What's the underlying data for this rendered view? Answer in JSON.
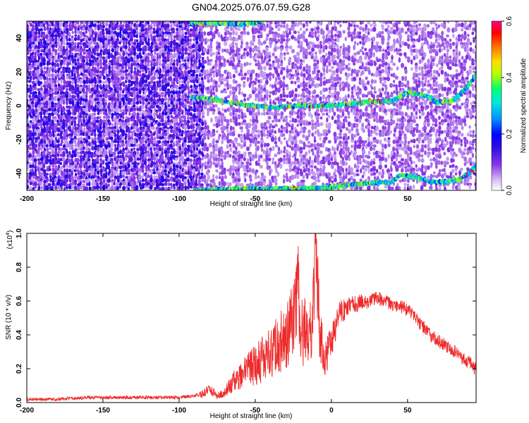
{
  "figure_title": "GN04.2025.076.07.59.G28",
  "chart_data": [
    {
      "type": "heatmap",
      "title": "",
      "xlabel": "Height of straight line (km)",
      "ylabel": "Frequency (Hz)",
      "xlim": [
        -200,
        95
      ],
      "ylim": [
        -50,
        50
      ],
      "x_ticks": [
        -200,
        -150,
        -100,
        -50,
        0,
        50
      ],
      "y_ticks": [
        -40,
        -20,
        0,
        20,
        40
      ],
      "grid": false,
      "colorscale": [
        "#ffffff",
        "#c9a8f0",
        "#8a38e6",
        "#3f10dc",
        "#0000ff",
        "#0090ff",
        "#00e0e0",
        "#00ff70",
        "#b0ff00",
        "#ffe000",
        "#ff7000",
        "#ff0000",
        "#ff0080"
      ],
      "colorbar": {
        "label": "Normalized spectral amplitude",
        "range": [
          0.0,
          0.6
        ],
        "ticks": [
          "0.0",
          "0.2",
          "0.4",
          "0.6"
        ]
      },
      "signal_tracks": [
        {
          "x": [
            -92,
            -80,
            -60,
            -40,
            -20,
            0,
            20,
            40,
            50,
            62,
            70,
            80,
            88,
            95
          ],
          "y": [
            5,
            4,
            1,
            -1,
            0,
            0,
            2,
            3,
            8,
            6,
            2,
            3,
            10,
            18
          ]
        },
        {
          "x": [
            -90,
            -60,
            -40,
            -20,
            0,
            20,
            40,
            45,
            55,
            65,
            75,
            85,
            90,
            95
          ],
          "y": [
            -50,
            -49,
            -49,
            -49,
            -48,
            -46,
            -45,
            -41,
            -42,
            -45,
            -45,
            -43,
            -40,
            -35
          ]
        },
        {
          "x": [
            -92,
            -75,
            -60,
            -50,
            -45
          ],
          "y": [
            49,
            49,
            48,
            49,
            50
          ]
        }
      ]
    },
    {
      "type": "line",
      "title": "",
      "xlabel": "Height of straight line (km)",
      "ylabel": "SNR (10 * v/v)",
      "y_multiplier": "(x10",
      "y_multiplier_exp": "4",
      "xlim": [
        -200,
        95
      ],
      "ylim": [
        0.0,
        1.0
      ],
      "x_ticks": [
        -200,
        -150,
        -100,
        -50,
        0,
        50
      ],
      "y_ticks": [
        "0.0",
        "0.2",
        "0.4",
        "0.6",
        "0.8",
        "1.0"
      ],
      "grid": false,
      "series": [
        {
          "color": "#ee2a2a",
          "x": [
            -200,
            -180,
            -160,
            -140,
            -120,
            -100,
            -90,
            -85,
            -80,
            -75,
            -70,
            -65,
            -60,
            -55,
            -50,
            -45,
            -40,
            -35,
            -30,
            -27,
            -25,
            -22,
            -20,
            -17,
            -15,
            -12,
            -10,
            -8,
            -5,
            0,
            5,
            10,
            15,
            20,
            25,
            30,
            35,
            40,
            45,
            50,
            55,
            60,
            65,
            70,
            75,
            80,
            85,
            90,
            95
          ],
          "y": [
            0.02,
            0.02,
            0.03,
            0.03,
            0.03,
            0.03,
            0.04,
            0.05,
            0.08,
            0.04,
            0.06,
            0.12,
            0.15,
            0.2,
            0.22,
            0.26,
            0.3,
            0.35,
            0.38,
            0.45,
            0.52,
            0.7,
            0.48,
            0.4,
            0.38,
            0.55,
            0.95,
            0.45,
            0.25,
            0.35,
            0.52,
            0.56,
            0.58,
            0.59,
            0.6,
            0.62,
            0.6,
            0.58,
            0.57,
            0.55,
            0.5,
            0.45,
            0.4,
            0.36,
            0.34,
            0.31,
            0.27,
            0.24,
            0.2
          ],
          "noise": [
            0.01,
            0.01,
            0.01,
            0.01,
            0.01,
            0.01,
            0.01,
            0.02,
            0.03,
            0.02,
            0.03,
            0.06,
            0.07,
            0.1,
            0.12,
            0.14,
            0.16,
            0.18,
            0.2,
            0.22,
            0.25,
            0.28,
            0.25,
            0.22,
            0.2,
            0.25,
            0.3,
            0.2,
            0.12,
            0.1,
            0.08,
            0.06,
            0.05,
            0.05,
            0.04,
            0.04,
            0.04,
            0.04,
            0.04,
            0.04,
            0.04,
            0.04,
            0.04,
            0.04,
            0.04,
            0.04,
            0.04,
            0.04,
            0.04
          ]
        }
      ]
    }
  ]
}
